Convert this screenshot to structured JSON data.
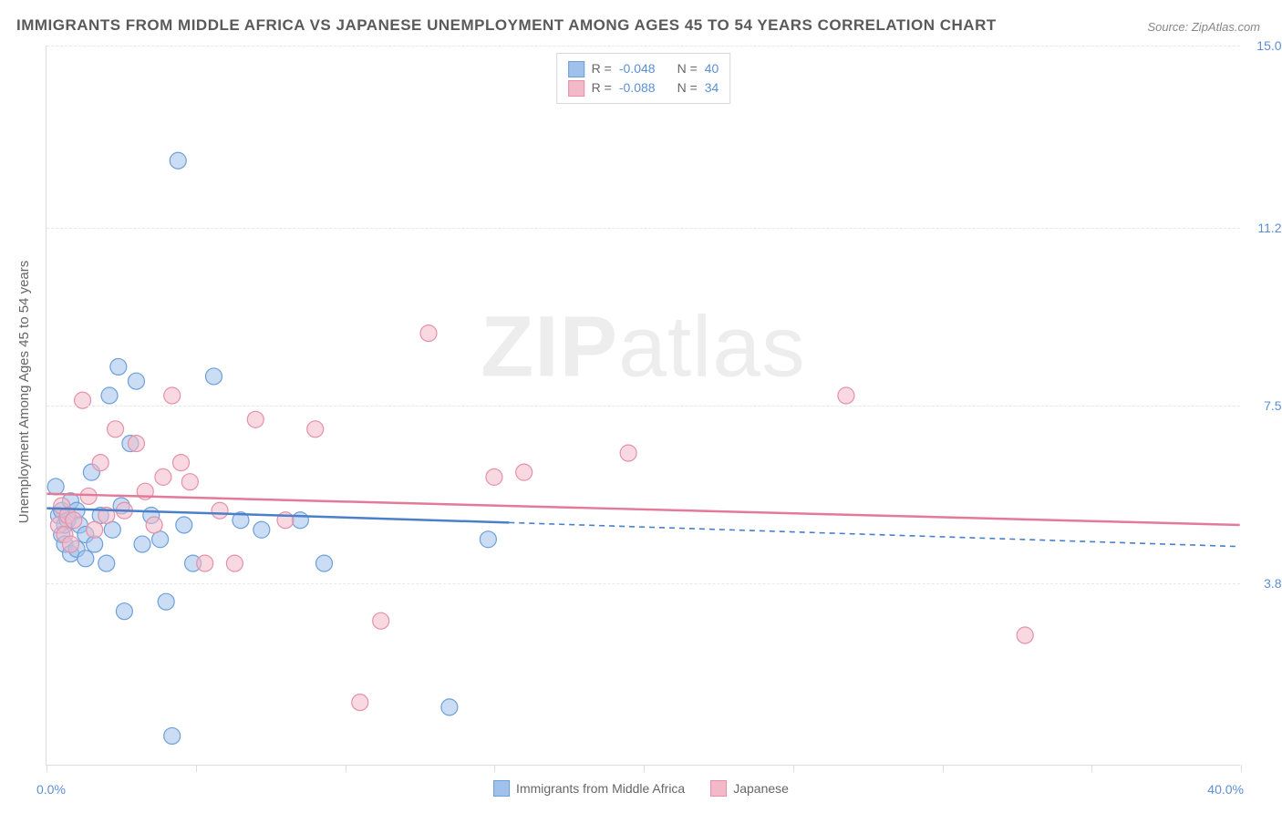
{
  "title": "IMMIGRANTS FROM MIDDLE AFRICA VS JAPANESE UNEMPLOYMENT AMONG AGES 45 TO 54 YEARS CORRELATION CHART",
  "source": "Source: ZipAtlas.com",
  "watermark_bold": "ZIP",
  "watermark_rest": "atlas",
  "yaxis_label": "Unemployment Among Ages 45 to 54 years",
  "chart": {
    "type": "scatter",
    "xlim": [
      0,
      40
    ],
    "ylim": [
      0,
      15
    ],
    "x_left_label": "0.0%",
    "x_right_label": "40.0%",
    "xtick_positions": [
      0,
      5,
      10,
      15,
      20,
      25,
      30,
      35,
      40
    ],
    "ytick_labels": [
      "15.0%",
      "11.2%",
      "7.5%",
      "3.8%"
    ],
    "ytick_values": [
      15.0,
      11.2,
      7.5,
      3.8
    ],
    "gridline_values": [
      15.0,
      11.2,
      7.5,
      3.8
    ],
    "background_color": "#ffffff",
    "grid_color": "#e8e8e8",
    "axis_color": "#dcdcdc",
    "marker_radius": 9,
    "marker_opacity": 0.55,
    "series": [
      {
        "name": "Immigrants from Middle Africa",
        "fill": "#9fc1eb",
        "stroke": "#6d9fd9",
        "line_color": "#4a7fc9",
        "R": "-0.048",
        "N": "40",
        "trend_x_solid": [
          0,
          15.5
        ],
        "trend_y_solid": [
          5.35,
          5.05
        ],
        "trend_x_dash": [
          15.5,
          40
        ],
        "trend_y_dash": [
          5.05,
          4.55
        ],
        "points": [
          [
            0.3,
            5.8
          ],
          [
            0.4,
            5.2
          ],
          [
            0.5,
            4.8
          ],
          [
            0.5,
            5.3
          ],
          [
            0.6,
            5.0
          ],
          [
            0.6,
            4.6
          ],
          [
            0.7,
            5.1
          ],
          [
            0.8,
            5.5
          ],
          [
            0.8,
            4.4
          ],
          [
            1.0,
            5.3
          ],
          [
            1.0,
            4.5
          ],
          [
            1.1,
            5.0
          ],
          [
            1.3,
            4.8
          ],
          [
            1.3,
            4.3
          ],
          [
            1.5,
            6.1
          ],
          [
            1.6,
            4.6
          ],
          [
            1.8,
            5.2
          ],
          [
            2.0,
            4.2
          ],
          [
            2.1,
            7.7
          ],
          [
            2.2,
            4.9
          ],
          [
            2.4,
            8.3
          ],
          [
            2.5,
            5.4
          ],
          [
            2.6,
            3.2
          ],
          [
            2.8,
            6.7
          ],
          [
            3.0,
            8.0
          ],
          [
            3.2,
            4.6
          ],
          [
            3.5,
            5.2
          ],
          [
            3.8,
            4.7
          ],
          [
            4.0,
            3.4
          ],
          [
            4.2,
            0.6
          ],
          [
            4.4,
            12.6
          ],
          [
            4.6,
            5.0
          ],
          [
            4.9,
            4.2
          ],
          [
            5.6,
            8.1
          ],
          [
            6.5,
            5.1
          ],
          [
            7.2,
            4.9
          ],
          [
            8.5,
            5.1
          ],
          [
            9.3,
            4.2
          ],
          [
            13.5,
            1.2
          ],
          [
            14.8,
            4.7
          ]
        ]
      },
      {
        "name": "Japanese",
        "fill": "#f3b9c8",
        "stroke": "#e690a8",
        "line_color": "#e27a98",
        "R": "-0.088",
        "N": "34",
        "trend_x_solid": [
          0,
          40
        ],
        "trend_y_solid": [
          5.65,
          5.0
        ],
        "trend_x_dash": null,
        "trend_y_dash": null,
        "points": [
          [
            0.4,
            5.0
          ],
          [
            0.5,
            5.4
          ],
          [
            0.6,
            4.8
          ],
          [
            0.7,
            5.2
          ],
          [
            0.8,
            4.6
          ],
          [
            0.9,
            5.1
          ],
          [
            1.2,
            7.6
          ],
          [
            1.4,
            5.6
          ],
          [
            1.6,
            4.9
          ],
          [
            1.8,
            6.3
          ],
          [
            2.0,
            5.2
          ],
          [
            2.3,
            7.0
          ],
          [
            2.6,
            5.3
          ],
          [
            3.0,
            6.7
          ],
          [
            3.3,
            5.7
          ],
          [
            3.6,
            5.0
          ],
          [
            3.9,
            6.0
          ],
          [
            4.2,
            7.7
          ],
          [
            4.5,
            6.3
          ],
          [
            4.8,
            5.9
          ],
          [
            5.3,
            4.2
          ],
          [
            5.8,
            5.3
          ],
          [
            6.3,
            4.2
          ],
          [
            7.0,
            7.2
          ],
          [
            8.0,
            5.1
          ],
          [
            9.0,
            7.0
          ],
          [
            10.5,
            1.3
          ],
          [
            11.2,
            3.0
          ],
          [
            12.8,
            9.0
          ],
          [
            15.0,
            6.0
          ],
          [
            16.0,
            6.1
          ],
          [
            19.5,
            6.5
          ],
          [
            26.8,
            7.7
          ],
          [
            32.8,
            2.7
          ]
        ]
      }
    ]
  },
  "legend_top": {
    "r_label": "R =",
    "n_label": "N ="
  },
  "legend_bottom": [
    {
      "label": "Immigrants from Middle Africa",
      "fill": "#9fc1eb",
      "stroke": "#6d9fd9"
    },
    {
      "label": "Japanese",
      "fill": "#f3b9c8",
      "stroke": "#e690a8"
    }
  ]
}
